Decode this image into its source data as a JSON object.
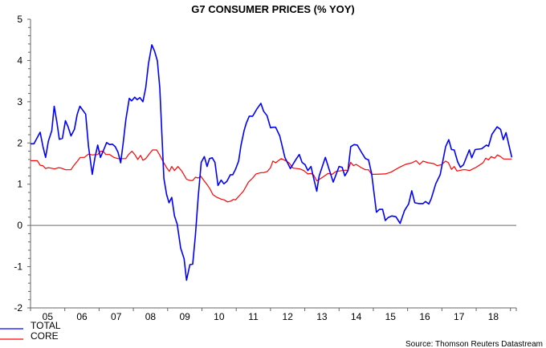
{
  "chart_data": {
    "type": "line",
    "title": "G7 CONSUMER PRICES (% YOY)",
    "xlabel": "",
    "ylabel": "",
    "xlim": [
      2005,
      2019.17
    ],
    "ylim": [
      -2,
      5
    ],
    "yticks": [
      "5",
      "4",
      "3",
      "2",
      "1",
      "0",
      "-1",
      "-2"
    ],
    "xticks": [
      "05",
      "06",
      "07",
      "08",
      "09",
      "10",
      "11",
      "12",
      "13",
      "14",
      "15",
      "16",
      "17",
      "18"
    ],
    "grid": false,
    "zero_line": true,
    "legend": "bottom-left",
    "source": "Source: Thomson Reuters Datastream",
    "series": [
      {
        "name": "TOTAL",
        "color": "#0000ff",
        "points": [
          [
            2005.0,
            1.98
          ],
          [
            2005.1,
            1.98
          ],
          [
            2005.28,
            2.26
          ],
          [
            2005.36,
            1.92
          ],
          [
            2005.44,
            1.65
          ],
          [
            2005.52,
            2.04
          ],
          [
            2005.62,
            2.3
          ],
          [
            2005.69,
            2.89
          ],
          [
            2005.77,
            2.5
          ],
          [
            2005.84,
            2.09
          ],
          [
            2005.93,
            2.11
          ],
          [
            2006.02,
            2.54
          ],
          [
            2006.1,
            2.38
          ],
          [
            2006.18,
            2.17
          ],
          [
            2006.28,
            2.33
          ],
          [
            2006.36,
            2.69
          ],
          [
            2006.44,
            2.89
          ],
          [
            2006.53,
            2.79
          ],
          [
            2006.61,
            2.7
          ],
          [
            2006.69,
            1.92
          ],
          [
            2006.8,
            1.24
          ],
          [
            2006.88,
            1.65
          ],
          [
            2006.96,
            1.95
          ],
          [
            2007.04,
            1.65
          ],
          [
            2007.13,
            1.82
          ],
          [
            2007.22,
            2.01
          ],
          [
            2007.31,
            1.96
          ],
          [
            2007.39,
            1.97
          ],
          [
            2007.47,
            1.91
          ],
          [
            2007.55,
            1.78
          ],
          [
            2007.63,
            1.52
          ],
          [
            2007.7,
            1.98
          ],
          [
            2007.78,
            2.56
          ],
          [
            2007.88,
            3.08
          ],
          [
            2007.95,
            3.02
          ],
          [
            2008.04,
            3.11
          ],
          [
            2008.11,
            3.05
          ],
          [
            2008.19,
            3.1
          ],
          [
            2008.28,
            3.0
          ],
          [
            2008.36,
            3.34
          ],
          [
            2008.44,
            3.92
          ],
          [
            2008.54,
            4.38
          ],
          [
            2008.62,
            4.22
          ],
          [
            2008.7,
            3.99
          ],
          [
            2008.77,
            3.34
          ],
          [
            2008.89,
            1.14
          ],
          [
            2008.97,
            0.75
          ],
          [
            2009.04,
            0.55
          ],
          [
            2009.12,
            0.68
          ],
          [
            2009.2,
            0.23
          ],
          [
            2009.28,
            0.03
          ],
          [
            2009.38,
            -0.55
          ],
          [
            2009.48,
            -0.81
          ],
          [
            2009.55,
            -1.33
          ],
          [
            2009.65,
            -0.95
          ],
          [
            2009.73,
            -0.94
          ],
          [
            2009.81,
            -0.23
          ],
          [
            2009.89,
            0.68
          ],
          [
            2009.98,
            1.53
          ],
          [
            2010.07,
            1.67
          ],
          [
            2010.15,
            1.43
          ],
          [
            2010.22,
            1.62
          ],
          [
            2010.3,
            1.64
          ],
          [
            2010.38,
            1.53
          ],
          [
            2010.47,
            0.97
          ],
          [
            2010.56,
            1.1
          ],
          [
            2010.64,
            1.01
          ],
          [
            2010.73,
            1.07
          ],
          [
            2010.83,
            1.23
          ],
          [
            2010.9,
            1.23
          ],
          [
            2010.98,
            1.36
          ],
          [
            2011.07,
            1.56
          ],
          [
            2011.14,
            1.95
          ],
          [
            2011.23,
            2.3
          ],
          [
            2011.29,
            2.47
          ],
          [
            2011.38,
            2.65
          ],
          [
            2011.48,
            2.65
          ],
          [
            2011.6,
            2.82
          ],
          [
            2011.72,
            2.96
          ],
          [
            2011.8,
            2.77
          ],
          [
            2011.9,
            2.66
          ],
          [
            2012.0,
            2.37
          ],
          [
            2012.07,
            2.38
          ],
          [
            2012.15,
            2.38
          ],
          [
            2012.27,
            2.17
          ],
          [
            2012.42,
            1.65
          ],
          [
            2012.58,
            1.38
          ],
          [
            2012.66,
            1.49
          ],
          [
            2012.75,
            1.61
          ],
          [
            2012.84,
            1.72
          ],
          [
            2012.92,
            1.53
          ],
          [
            2013.01,
            1.47
          ],
          [
            2013.09,
            1.33
          ],
          [
            2013.18,
            1.43
          ],
          [
            2013.26,
            1.14
          ],
          [
            2013.35,
            0.83
          ],
          [
            2013.42,
            1.2
          ],
          [
            2013.6,
            1.65
          ],
          [
            2013.71,
            1.36
          ],
          [
            2013.83,
            1.05
          ],
          [
            2014.0,
            1.43
          ],
          [
            2014.09,
            1.41
          ],
          [
            2014.17,
            1.2
          ],
          [
            2014.26,
            1.33
          ],
          [
            2014.34,
            1.91
          ],
          [
            2014.44,
            1.96
          ],
          [
            2014.53,
            1.95
          ],
          [
            2014.67,
            1.75
          ],
          [
            2014.77,
            1.62
          ],
          [
            2014.86,
            1.59
          ],
          [
            2014.95,
            1.26
          ],
          [
            2015.09,
            0.32
          ],
          [
            2015.18,
            0.39
          ],
          [
            2015.27,
            0.39
          ],
          [
            2015.35,
            0.12
          ],
          [
            2015.43,
            0.19
          ],
          [
            2015.54,
            0.23
          ],
          [
            2015.66,
            0.21
          ],
          [
            2015.78,
            0.05
          ],
          [
            2015.91,
            0.36
          ],
          [
            2016.03,
            0.52
          ],
          [
            2016.12,
            0.84
          ],
          [
            2016.21,
            0.55
          ],
          [
            2016.33,
            0.53
          ],
          [
            2016.45,
            0.53
          ],
          [
            2016.52,
            0.58
          ],
          [
            2016.62,
            0.52
          ],
          [
            2016.69,
            0.65
          ],
          [
            2016.82,
            1.01
          ],
          [
            2016.95,
            1.23
          ],
          [
            2017.11,
            1.91
          ],
          [
            2017.2,
            2.08
          ],
          [
            2017.28,
            1.84
          ],
          [
            2017.36,
            1.83
          ],
          [
            2017.46,
            1.54
          ],
          [
            2017.54,
            1.41
          ],
          [
            2017.63,
            1.47
          ],
          [
            2017.8,
            1.83
          ],
          [
            2017.87,
            1.64
          ],
          [
            2017.97,
            1.84
          ],
          [
            2018.16,
            1.86
          ],
          [
            2018.3,
            1.95
          ],
          [
            2018.36,
            1.92
          ],
          [
            2018.46,
            2.21
          ],
          [
            2018.61,
            2.39
          ],
          [
            2018.71,
            2.33
          ],
          [
            2018.79,
            2.08
          ],
          [
            2018.87,
            2.25
          ],
          [
            2019.04,
            1.65
          ]
        ]
      },
      {
        "name": "CORE",
        "color": "#ff0000",
        "points": [
          [
            2005.0,
            1.57
          ],
          [
            2005.2,
            1.57
          ],
          [
            2005.28,
            1.46
          ],
          [
            2005.36,
            1.45
          ],
          [
            2005.44,
            1.38
          ],
          [
            2005.52,
            1.4
          ],
          [
            2005.6,
            1.39
          ],
          [
            2005.7,
            1.37
          ],
          [
            2005.82,
            1.4
          ],
          [
            2005.9,
            1.39
          ],
          [
            2006.02,
            1.35
          ],
          [
            2006.18,
            1.35
          ],
          [
            2006.26,
            1.45
          ],
          [
            2006.37,
            1.56
          ],
          [
            2006.45,
            1.65
          ],
          [
            2006.57,
            1.65
          ],
          [
            2006.69,
            1.73
          ],
          [
            2006.8,
            1.71
          ],
          [
            2006.96,
            1.72
          ],
          [
            2007.04,
            1.8
          ],
          [
            2007.12,
            1.8
          ],
          [
            2007.2,
            1.72
          ],
          [
            2007.31,
            1.72
          ],
          [
            2007.43,
            1.65
          ],
          [
            2007.55,
            1.62
          ],
          [
            2007.7,
            1.62
          ],
          [
            2007.78,
            1.62
          ],
          [
            2007.86,
            1.72
          ],
          [
            2007.96,
            1.8
          ],
          [
            2008.05,
            1.71
          ],
          [
            2008.13,
            1.6
          ],
          [
            2008.21,
            1.7
          ],
          [
            2008.28,
            1.58
          ],
          [
            2008.36,
            1.62
          ],
          [
            2008.48,
            1.75
          ],
          [
            2008.56,
            1.83
          ],
          [
            2008.68,
            1.83
          ],
          [
            2008.76,
            1.72
          ],
          [
            2008.86,
            1.56
          ],
          [
            2008.97,
            1.4
          ],
          [
            2009.05,
            1.31
          ],
          [
            2009.12,
            1.43
          ],
          [
            2009.2,
            1.33
          ],
          [
            2009.3,
            1.43
          ],
          [
            2009.42,
            1.31
          ],
          [
            2009.55,
            1.12
          ],
          [
            2009.65,
            1.09
          ],
          [
            2009.73,
            1.09
          ],
          [
            2009.81,
            1.17
          ],
          [
            2009.89,
            1.15
          ],
          [
            2009.97,
            1.19
          ],
          [
            2010.05,
            1.1
          ],
          [
            2010.16,
            0.98
          ],
          [
            2010.24,
            0.88
          ],
          [
            2010.32,
            0.75
          ],
          [
            2010.42,
            0.69
          ],
          [
            2010.55,
            0.64
          ],
          [
            2010.65,
            0.62
          ],
          [
            2010.75,
            0.57
          ],
          [
            2010.84,
            0.59
          ],
          [
            2010.92,
            0.63
          ],
          [
            2010.98,
            0.62
          ],
          [
            2011.09,
            0.72
          ],
          [
            2011.21,
            0.83
          ],
          [
            2011.36,
            1.05
          ],
          [
            2011.48,
            1.15
          ],
          [
            2011.58,
            1.25
          ],
          [
            2011.72,
            1.28
          ],
          [
            2011.8,
            1.28
          ],
          [
            2011.91,
            1.31
          ],
          [
            2012.0,
            1.4
          ],
          [
            2012.07,
            1.56
          ],
          [
            2012.15,
            1.52
          ],
          [
            2012.31,
            1.62
          ],
          [
            2012.42,
            1.58
          ],
          [
            2012.54,
            1.52
          ],
          [
            2012.66,
            1.39
          ],
          [
            2012.86,
            1.37
          ],
          [
            2012.97,
            1.33
          ],
          [
            2013.09,
            1.25
          ],
          [
            2013.18,
            1.26
          ],
          [
            2013.26,
            1.22
          ],
          [
            2013.35,
            1.08
          ],
          [
            2013.45,
            1.13
          ],
          [
            2013.56,
            1.19
          ],
          [
            2013.68,
            1.26
          ],
          [
            2013.8,
            1.24
          ],
          [
            2013.91,
            1.31
          ],
          [
            2014.19,
            1.34
          ],
          [
            2014.26,
            1.33
          ],
          [
            2014.34,
            1.53
          ],
          [
            2014.42,
            1.45
          ],
          [
            2014.5,
            1.48
          ],
          [
            2014.65,
            1.4
          ],
          [
            2014.77,
            1.35
          ],
          [
            2014.86,
            1.35
          ],
          [
            2014.95,
            1.24
          ],
          [
            2015.05,
            1.24
          ],
          [
            2015.35,
            1.25
          ],
          [
            2015.51,
            1.29
          ],
          [
            2015.74,
            1.4
          ],
          [
            2015.94,
            1.48
          ],
          [
            2016.13,
            1.52
          ],
          [
            2016.25,
            1.57
          ],
          [
            2016.35,
            1.48
          ],
          [
            2016.45,
            1.56
          ],
          [
            2016.6,
            1.52
          ],
          [
            2016.76,
            1.5
          ],
          [
            2016.86,
            1.45
          ],
          [
            2016.98,
            1.47
          ],
          [
            2017.11,
            1.56
          ],
          [
            2017.19,
            1.52
          ],
          [
            2017.28,
            1.36
          ],
          [
            2017.36,
            1.43
          ],
          [
            2017.44,
            1.32
          ],
          [
            2017.62,
            1.35
          ],
          [
            2017.69,
            1.35
          ],
          [
            2017.81,
            1.33
          ],
          [
            2018.0,
            1.41
          ],
          [
            2018.2,
            1.52
          ],
          [
            2018.28,
            1.63
          ],
          [
            2018.36,
            1.59
          ],
          [
            2018.44,
            1.67
          ],
          [
            2018.54,
            1.63
          ],
          [
            2018.62,
            1.71
          ],
          [
            2018.71,
            1.67
          ],
          [
            2018.8,
            1.61
          ],
          [
            2019.04,
            1.61
          ]
        ]
      }
    ]
  }
}
